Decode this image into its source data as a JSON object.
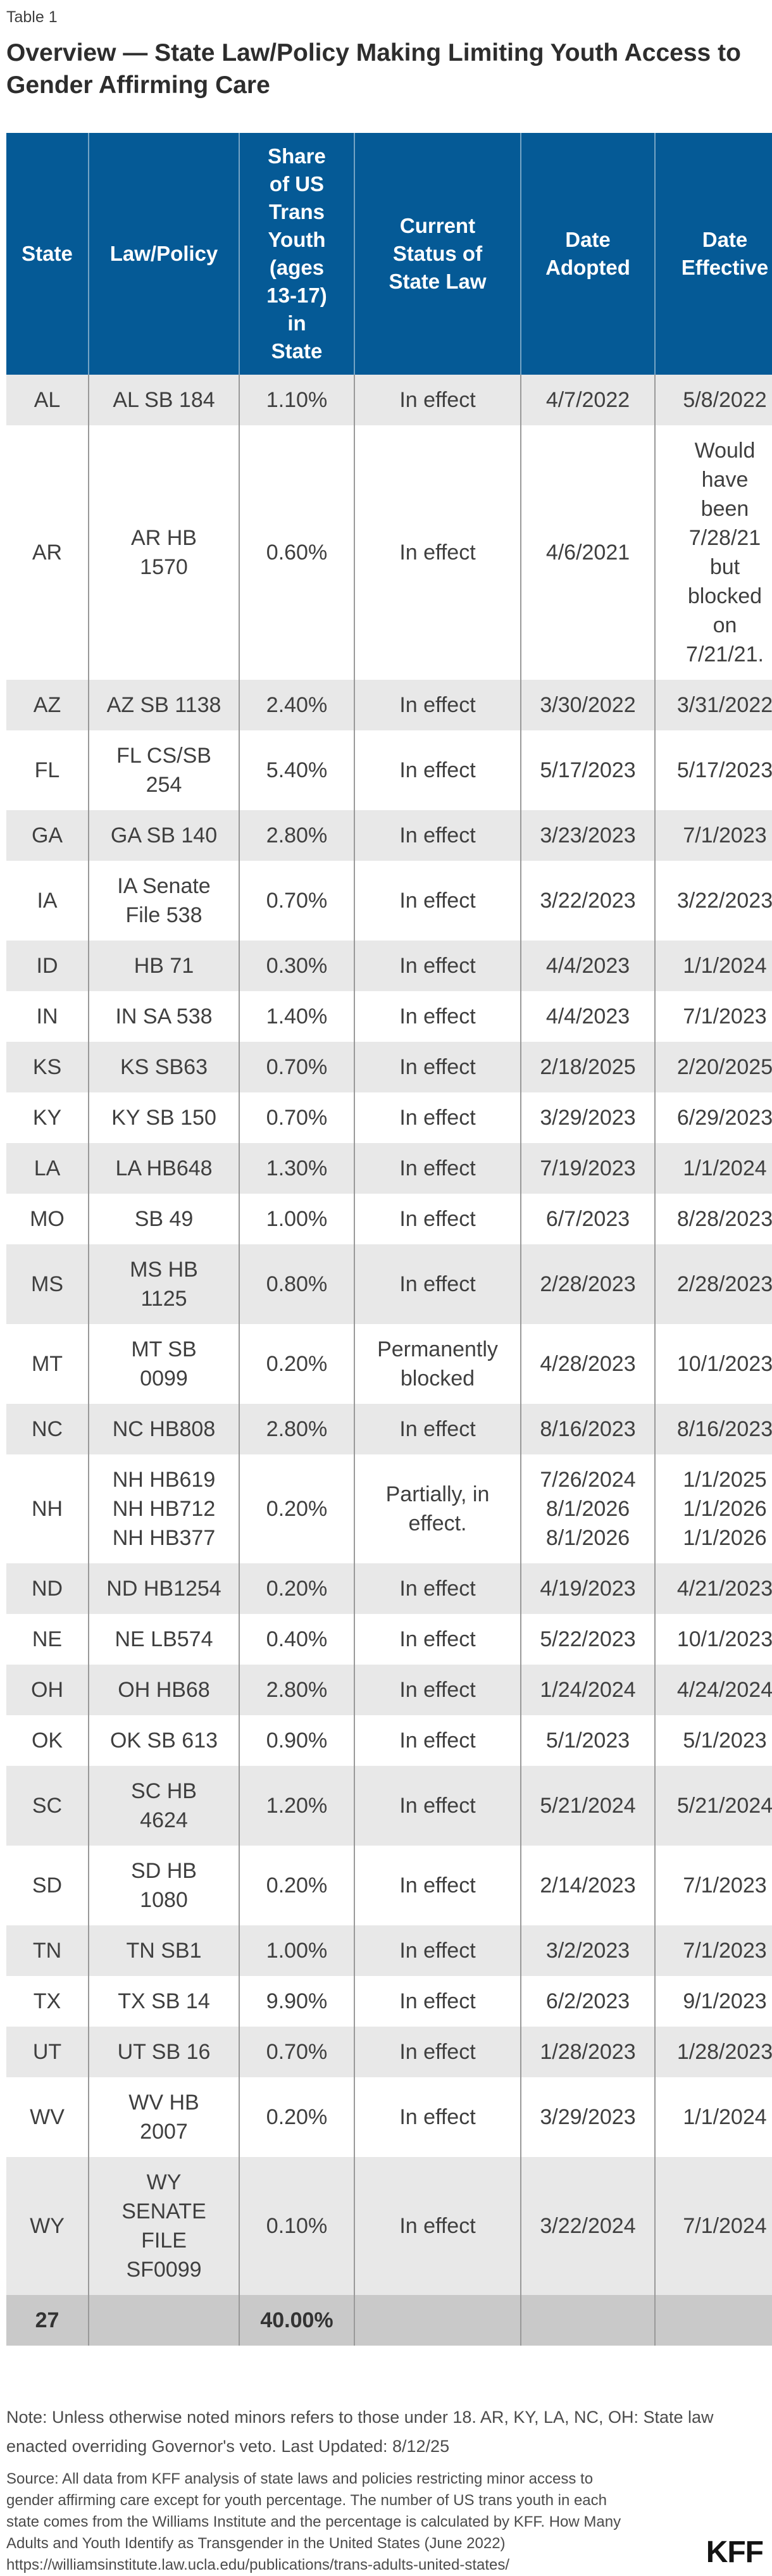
{
  "chart_data": {
    "type": "table",
    "table_label": "Table 1",
    "title": "Overview — State Law/Policy Making Limiting Youth Access to Gender Affirming Care",
    "columns": [
      "State",
      "Law/Policy",
      "Share\nof US\nTrans\nYouth\n(ages\n13-17)\nin\nState",
      "Current\nStatus of\nState Law",
      "Date\nAdopted",
      "Date\nEffective"
    ],
    "rows": [
      [
        "AL",
        "AL SB 184",
        "1.10%",
        "In effect",
        "4/7/2022",
        "5/8/2022"
      ],
      [
        "AR",
        "AR HB\n1570",
        "0.60%",
        "In effect",
        "4/6/2021",
        "Would\nhave\nbeen\n7/28/21\nbut\nblocked\non\n7/21/21."
      ],
      [
        "AZ",
        "AZ SB 1138",
        "2.40%",
        "In effect",
        "3/30/2022",
        "3/31/2022"
      ],
      [
        "FL",
        "FL CS/SB\n254",
        "5.40%",
        "In effect",
        "5/17/2023",
        "5/17/2023"
      ],
      [
        "GA",
        "GA SB 140",
        "2.80%",
        "In effect",
        "3/23/2023",
        "7/1/2023"
      ],
      [
        "IA",
        "IA Senate\nFile 538",
        "0.70%",
        "In effect",
        "3/22/2023",
        "3/22/2023"
      ],
      [
        "ID",
        "HB 71",
        "0.30%",
        "In effect",
        "4/4/2023",
        "1/1/2024"
      ],
      [
        "IN",
        "IN SA 538",
        "1.40%",
        "In effect",
        "4/4/2023",
        "7/1/2023"
      ],
      [
        "KS",
        "KS SB63",
        "0.70%",
        "In effect",
        "2/18/2025",
        "2/20/2025"
      ],
      [
        "KY",
        "KY SB 150",
        "0.70%",
        "In effect",
        "3/29/2023",
        "6/29/2023"
      ],
      [
        "LA",
        "LA HB648",
        "1.30%",
        "In effect",
        "7/19/2023",
        "1/1/2024"
      ],
      [
        "MO",
        "SB 49",
        "1.00%",
        "In effect",
        "6/7/2023",
        "8/28/2023"
      ],
      [
        "MS",
        "MS HB\n1125",
        "0.80%",
        "In effect",
        "2/28/2023",
        "2/28/2023"
      ],
      [
        "MT",
        "MT SB\n0099",
        "0.20%",
        "Permanently\nblocked",
        "4/28/2023",
        "10/1/2023"
      ],
      [
        "NC",
        "NC HB808",
        "2.80%",
        "In effect",
        "8/16/2023",
        "8/16/2023"
      ],
      [
        "NH",
        "NH HB619\nNH HB712\nNH HB377",
        "0.20%",
        "Partially, in\neffect.",
        "7/26/2024\n8/1/2026\n8/1/2026",
        "1/1/2025\n1/1/2026\n1/1/2026"
      ],
      [
        "ND",
        "ND HB1254",
        "0.20%",
        "In effect",
        "4/19/2023",
        "4/21/2023"
      ],
      [
        "NE",
        "NE LB574",
        "0.40%",
        "In effect",
        "5/22/2023",
        "10/1/2023"
      ],
      [
        "OH",
        "OH HB68",
        "2.80%",
        "In effect",
        "1/24/2024",
        "4/24/2024"
      ],
      [
        "OK",
        "OK SB 613",
        "0.90%",
        "In effect",
        "5/1/2023",
        "5/1/2023"
      ],
      [
        "SC",
        "SC HB\n4624",
        "1.20%",
        "In effect",
        "5/21/2024",
        "5/21/2024"
      ],
      [
        "SD",
        "SD HB\n1080",
        "0.20%",
        "In effect",
        "2/14/2023",
        "7/1/2023"
      ],
      [
        "TN",
        "TN SB1",
        "1.00%",
        "In effect",
        "3/2/2023",
        "7/1/2023"
      ],
      [
        "TX",
        "TX SB 14",
        "9.90%",
        "In effect",
        "6/2/2023",
        "9/1/2023"
      ],
      [
        "UT",
        "UT SB 16",
        "0.70%",
        "In effect",
        "1/28/2023",
        "1/28/2023"
      ],
      [
        "WV",
        "WV HB\n2007",
        "0.20%",
        "In effect",
        "3/29/2023",
        "1/1/2024"
      ],
      [
        "WY",
        "WY\nSENATE\nFILE\nSF0099",
        "0.10%",
        "In effect",
        "3/22/2024",
        "7/1/2024"
      ]
    ],
    "total_row": {
      "count": "27",
      "share": "40.00%"
    },
    "layout_hints": {
      "header_bg": "#055a96",
      "row_alt_bg": "#e8e8e8",
      "total_row_bg": "#c9c9c9",
      "divider_color": "#999999",
      "zebra": true
    }
  },
  "footer": {
    "note": "Note: Unless otherwise noted minors refers to those under 18. AR, KY, LA, NC, OH: State law\nenacted overriding Governor's veto. Last Updated: 8/12/25",
    "source": "Source: All data from KFF analysis of state laws and policies restricting minor access to\ngender affirming care except for youth percentage. The number of US trans youth in each\nstate comes from the Williams Institute and the percentage is calculated by KFF. How Many\nAdults and Youth Identify as Transgender in the United States (June 2022)",
    "source_url": "https://williamsinstitute.law.ucla.edu/publications/trans-adults-united-states/",
    "logo": "KFF"
  }
}
